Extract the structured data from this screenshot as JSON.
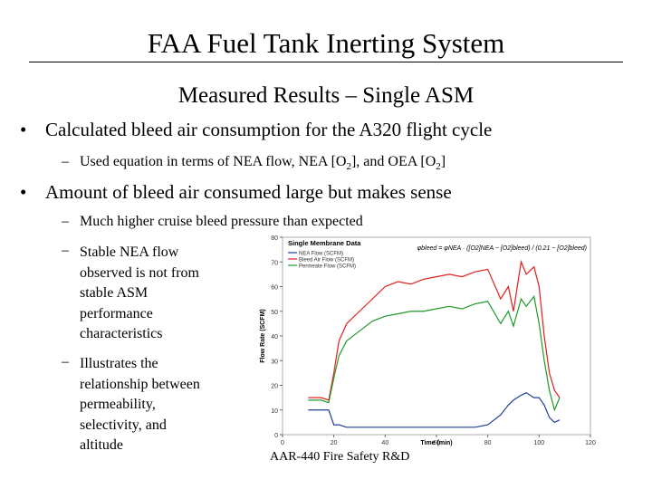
{
  "slide": {
    "title": "FAA Fuel Tank Inerting System",
    "subtitle": "Measured Results – Single ASM",
    "bullets": [
      {
        "text": "Calculated bleed air consumption for the A320 flight cycle",
        "sub": [
          "Used equation in terms of NEA flow, NEA [O",
          "2",
          "], and OEA [O",
          "2",
          "]"
        ]
      },
      {
        "text": "Amount of bleed air consumed large but makes sense",
        "subs": [
          "Much higher cruise bleed pressure than expected"
        ],
        "sub_lines": [
          [
            "Stable NEA flow",
            "observed is not from",
            "stable ASM",
            "performance",
            "characteristics"
          ],
          [
            "Illustrates the",
            "relationship between",
            "permeability,",
            "selectivity, and",
            "altitude"
          ]
        ]
      }
    ],
    "footer": "AAR-440 Fire Safety R&D"
  },
  "chart_data": {
    "type": "line",
    "title": "Single Membrane Data",
    "equation": "φbleed = φNEA · ([O2]NEA − [O2]bleed) / (0.21 − [O2]bleed)",
    "x_label": "Time (min)",
    "y_label": "Flow Rate (SCFM)",
    "x": [
      10,
      15,
      18,
      20,
      22,
      25,
      30,
      35,
      40,
      45,
      50,
      55,
      60,
      65,
      70,
      75,
      80,
      85,
      88,
      90,
      93,
      95,
      98,
      100,
      102,
      104,
      106,
      108
    ],
    "series": [
      {
        "name": "NEA Flow (SCFM)",
        "color": "#1f3f9a",
        "values": [
          10,
          10,
          10,
          4,
          4,
          3,
          3,
          3,
          3,
          3,
          3,
          3,
          3,
          3,
          3,
          3,
          4,
          8,
          12,
          14,
          16,
          17,
          15,
          15,
          12,
          7,
          5,
          6
        ]
      },
      {
        "name": "Bleed Air Flow (SCFM)",
        "color": "#e02020",
        "values": [
          15,
          15,
          14,
          25,
          38,
          45,
          50,
          55,
          60,
          62,
          61,
          63,
          64,
          65,
          64,
          66,
          67,
          55,
          60,
          50,
          70,
          65,
          68,
          60,
          40,
          25,
          18,
          15
        ]
      },
      {
        "name": "Permeate Flow (SCFM)",
        "color": "#1f9a2a",
        "values": [
          14,
          14,
          13,
          23,
          32,
          38,
          42,
          46,
          48,
          49,
          50,
          50,
          51,
          52,
          51,
          53,
          54,
          45,
          50,
          44,
          55,
          52,
          56,
          45,
          30,
          18,
          10,
          15
        ]
      }
    ],
    "xlim": [
      0,
      120
    ],
    "xticks": [
      0,
      20,
      40,
      60,
      80,
      100,
      120
    ],
    "ylim": [
      0,
      80
    ],
    "yticks": [
      0,
      10,
      20,
      30,
      40,
      50,
      60,
      70,
      80
    ]
  }
}
